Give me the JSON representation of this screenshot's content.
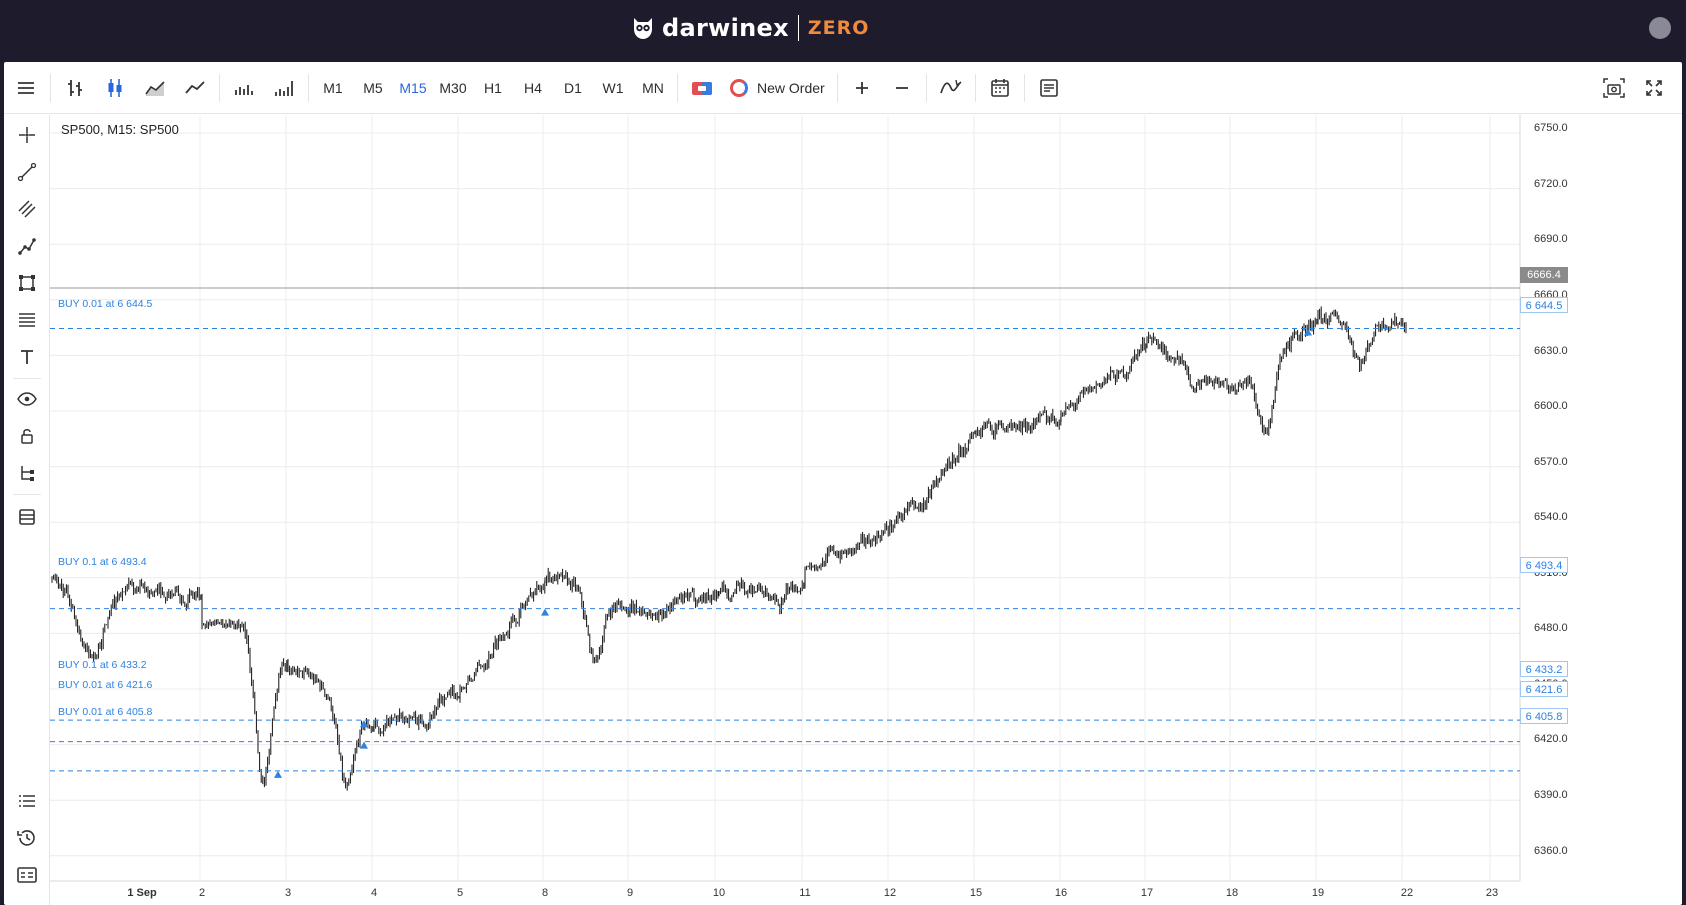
{
  "header": {
    "brand_name": "darwinex",
    "brand_suffix": "ZERO"
  },
  "toolbar": {
    "timeframes": [
      "M1",
      "M5",
      "M15",
      "M30",
      "H1",
      "H4",
      "D1",
      "W1",
      "MN"
    ],
    "active_timeframe": "M15",
    "new_order_label": "New Order"
  },
  "chart": {
    "symbol_label": "SP500, M15: SP500",
    "current_price": "6666.4",
    "price_ticks": [
      "6750.0",
      "6720.0",
      "6690.0",
      "6660.0",
      "6630.0",
      "6600.0",
      "6570.0",
      "6540.0",
      "6510.0",
      "6480.0",
      "6450.0",
      "6420.0",
      "6390.0",
      "6360.0"
    ],
    "date_ticks": [
      "1 Sep",
      "2",
      "3",
      "4",
      "5",
      "8",
      "9",
      "10",
      "11",
      "12",
      "15",
      "16",
      "17",
      "18",
      "19",
      "22",
      "23"
    ],
    "orders": [
      {
        "label": "BUY 0.01 at 6 644.5",
        "price_tag": "6 644.5"
      },
      {
        "label": "BUY 0.1 at 6 493.4",
        "price_tag": "6 493.4"
      },
      {
        "label": "BUY 0.1 at 6 433.2",
        "price_tag": "6 433.2"
      },
      {
        "label": "BUY 0.01 at 6 421.6",
        "price_tag": "6 421.6"
      },
      {
        "label": "BUY 0.01 at 6 405.8",
        "price_tag": "6 405.8"
      }
    ],
    "colors": {
      "order_line": "#2e82e0",
      "candle": "#111111",
      "grid": "#ececec",
      "active": "#2a66e0",
      "brand_accent": "#f08a3c"
    }
  },
  "chart_data": {
    "type": "candlestick",
    "symbol": "SP500",
    "timeframe": "M15",
    "ylim": [
      6350,
      6760
    ],
    "x": [
      "1 Sep",
      "2",
      "3",
      "4",
      "5",
      "8",
      "9",
      "10",
      "11",
      "12",
      "15",
      "16",
      "17",
      "18",
      "19",
      "22"
    ],
    "close": [
      6499,
      6465,
      6428,
      6448,
      6512,
      6492,
      6502,
      6508,
      6538,
      6590,
      6598,
      6638,
      6612,
      6650,
      6648,
      6666
    ],
    "low": [
      6450,
      6365,
      6368,
      6420,
      6450,
      6445,
      6486,
      6486,
      6516,
      6528,
      6585,
      6590,
      6600,
      6560,
      6618,
      6660
    ],
    "high": [
      6510,
      6485,
      6460,
      6462,
      6530,
      6535,
      6515,
      6525,
      6560,
      6600,
      6610,
      6645,
      6640,
      6670,
      6665,
      6680
    ],
    "buy_orders": [
      6644.5,
      6493.4,
      6433.2,
      6421.6,
      6405.8
    ]
  }
}
